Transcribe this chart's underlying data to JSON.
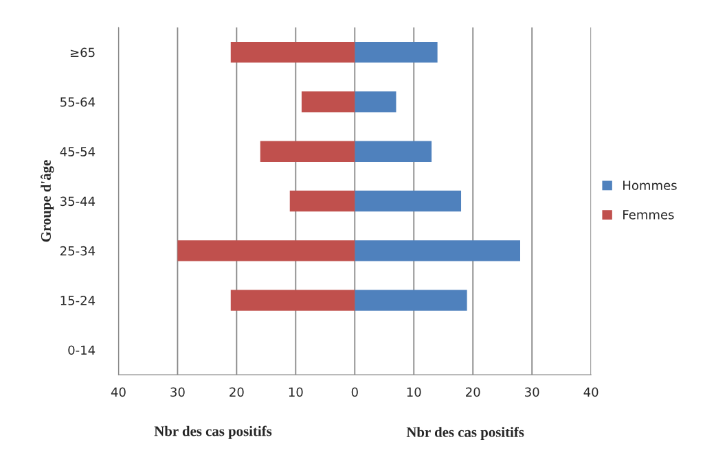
{
  "chart_data": {
    "type": "bar",
    "orientation": "horizontal",
    "ylabel": "Groupe d'âge",
    "xlabel": "Nbr des cas positifs",
    "annotations": [
      "Nbr des cas positifs"
    ],
    "categories": [
      "≥65",
      "55-64",
      "45-54",
      "35-44",
      "25-34",
      "15-24",
      "0-14"
    ],
    "series": [
      {
        "name": "Hommes",
        "color": "#4f81bd",
        "values": [
          14,
          7,
          13,
          18,
          28,
          19,
          0
        ]
      },
      {
        "name": "Femmes",
        "color": "#c0504d",
        "values": [
          -21,
          -9,
          -16,
          -11,
          -30,
          -21,
          0
        ]
      }
    ],
    "xlim": [
      -40,
      40
    ],
    "xticks": [
      {
        "value": -40,
        "label": "40"
      },
      {
        "value": -30,
        "label": "30"
      },
      {
        "value": -20,
        "label": "20"
      },
      {
        "value": -10,
        "label": "10"
      },
      0,
      10,
      20,
      30,
      40
    ],
    "grid": "x",
    "legend": "right",
    "stacked": true
  }
}
